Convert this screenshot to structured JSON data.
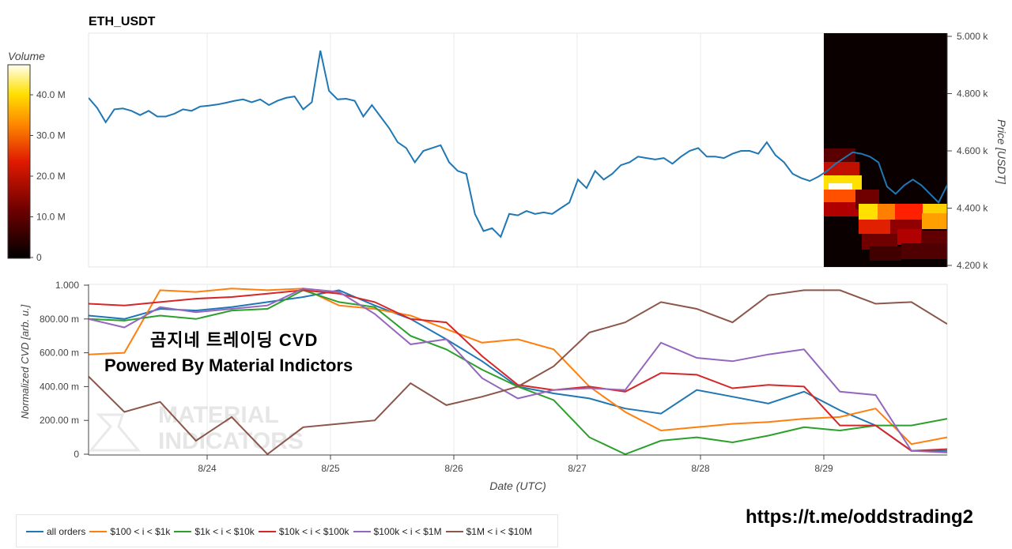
{
  "title": "ETH_USDT",
  "chart_data": [
    {
      "type": "line",
      "title": "ETH_USDT",
      "ylabel": "Price [USDT]",
      "ylim": [
        4200,
        5000
      ],
      "y_ticks": [
        "4.200 k",
        "4.400 k",
        "4.600 k",
        "4.800 k",
        "5.000 k"
      ],
      "x_ticks": [
        "8/24",
        "8/25",
        "8/26",
        "8/27",
        "8/28",
        "8/29"
      ],
      "xlim": [
        0,
        100
      ],
      "x_tick_positions": [
        24.0,
        40.0,
        56.0,
        72.0,
        88.0,
        104.0
      ],
      "series": [
        {
          "color": "#1f77b4",
          "x": [
            0,
            1,
            2,
            3,
            4,
            5,
            6,
            7,
            8,
            9,
            10,
            11,
            12,
            13,
            14,
            15,
            16,
            17,
            18,
            19,
            20,
            21,
            22,
            23,
            24,
            25,
            26,
            27,
            28,
            29,
            30,
            31,
            32,
            33,
            34,
            35,
            36,
            37,
            38,
            39,
            40,
            41,
            42,
            43,
            44,
            45,
            46,
            47,
            48,
            49,
            50,
            51,
            52,
            53,
            54,
            55,
            56,
            57,
            58,
            59,
            60,
            61,
            62,
            63,
            64,
            65,
            66,
            67,
            68,
            69,
            70,
            71,
            72,
            73,
            74,
            75,
            76,
            77,
            78,
            79,
            80,
            81,
            82,
            83,
            84,
            85,
            86,
            87,
            88,
            89,
            90,
            91,
            92,
            93,
            94,
            95,
            96,
            97,
            98,
            99,
            100
          ],
          "y": [
            4785,
            4750,
            4700,
            4745,
            4748,
            4740,
            4725,
            4740,
            4720,
            4720,
            4730,
            4745,
            4740,
            4755,
            4758,
            4762,
            4768,
            4775,
            4780,
            4770,
            4780,
            4760,
            4775,
            4785,
            4790,
            4745,
            4770,
            4950,
            4810,
            4780,
            4782,
            4775,
            4720,
            4760,
            4720,
            4680,
            4630,
            4610,
            4560,
            4600,
            4610,
            4620,
            4560,
            4530,
            4520,
            4380,
            4320,
            4330,
            4300,
            4380,
            4375,
            4390,
            4380,
            4385,
            4380,
            4400,
            4420,
            4500,
            4470,
            4530,
            4500,
            4520,
            4550,
            4560,
            4580,
            4575,
            4570,
            4575,
            4555,
            4580,
            4600,
            4610,
            4580,
            4580,
            4575,
            4590,
            4600,
            4600,
            4590,
            4630,
            4585,
            4560,
            4520,
            4505,
            4495,
            4510,
            4530,
            4555,
            4575,
            4595,
            4590,
            4580,
            4560,
            4475,
            4450,
            4480,
            4500,
            4480,
            4450,
            4420,
            4480
          ]
        }
      ],
      "heatmap": {
        "colorbar_label": "Volume",
        "colorbar_ticks": [
          "0",
          "10.0 M",
          "20.0 M",
          "30.0 M",
          "40.0 M"
        ]
      }
    },
    {
      "type": "line",
      "xlabel": "Date (UTC)",
      "ylabel": "Normalized CVD [arb. u.]",
      "ylim": [
        0,
        1
      ],
      "y_ticks": [
        "0",
        "200.00 m",
        "400.00 m",
        "600.00 m",
        "800.00 m",
        "1.000"
      ],
      "x_ticks": [
        "8/24",
        "8/25",
        "8/26",
        "8/27",
        "8/28",
        "8/29"
      ],
      "legend_position": "bottom-left",
      "series": [
        {
          "name": "all orders",
          "color": "#1f77b4",
          "x": [
            0,
            5,
            10,
            15,
            20,
            25,
            30,
            35,
            40,
            45,
            50,
            55,
            60,
            65,
            70,
            75,
            80,
            85,
            90,
            95,
            100,
            105,
            110,
            115,
            120
          ],
          "y": [
            0.82,
            0.8,
            0.86,
            0.85,
            0.87,
            0.9,
            0.93,
            0.97,
            0.88,
            0.8,
            0.68,
            0.55,
            0.4,
            0.36,
            0.33,
            0.27,
            0.24,
            0.38,
            0.34,
            0.3,
            0.37,
            0.26,
            0.17,
            0.02,
            0.02
          ]
        },
        {
          "name": "$100 < i < $1k",
          "color": "#ff7f0e",
          "x": [
            0,
            5,
            10,
            15,
            20,
            25,
            30,
            35,
            40,
            45,
            50,
            55,
            60,
            65,
            70,
            75,
            80,
            85,
            90,
            95,
            100,
            105,
            110,
            115,
            120
          ],
          "y": [
            0.59,
            0.6,
            0.97,
            0.96,
            0.98,
            0.97,
            0.98,
            0.88,
            0.86,
            0.82,
            0.74,
            0.66,
            0.68,
            0.62,
            0.4,
            0.25,
            0.14,
            0.16,
            0.18,
            0.19,
            0.21,
            0.22,
            0.27,
            0.06,
            0.1
          ]
        },
        {
          "name": "$1k < i < $10k",
          "color": "#2ca02c",
          "x": [
            0,
            5,
            10,
            15,
            20,
            25,
            30,
            35,
            40,
            45,
            50,
            55,
            60,
            65,
            70,
            75,
            80,
            85,
            90,
            95,
            100,
            105,
            110,
            115,
            120
          ],
          "y": [
            0.8,
            0.79,
            0.82,
            0.8,
            0.85,
            0.86,
            0.97,
            0.9,
            0.87,
            0.7,
            0.62,
            0.5,
            0.4,
            0.32,
            0.1,
            0.0,
            0.08,
            0.1,
            0.07,
            0.11,
            0.16,
            0.14,
            0.17,
            0.17,
            0.21
          ]
        },
        {
          "name": "$10k < i < $100k",
          "color": "#d62728",
          "x": [
            0,
            5,
            10,
            15,
            20,
            25,
            30,
            35,
            40,
            45,
            50,
            55,
            60,
            65,
            70,
            75,
            80,
            85,
            90,
            95,
            100,
            105,
            110,
            115,
            120
          ],
          "y": [
            0.89,
            0.88,
            0.9,
            0.92,
            0.93,
            0.95,
            0.97,
            0.95,
            0.9,
            0.8,
            0.78,
            0.58,
            0.41,
            0.38,
            0.4,
            0.37,
            0.48,
            0.47,
            0.39,
            0.41,
            0.4,
            0.17,
            0.17,
            0.02,
            0.03
          ]
        },
        {
          "name": "$100k < i < $1M",
          "color": "#9467bd",
          "x": [
            0,
            5,
            10,
            15,
            20,
            25,
            30,
            35,
            40,
            45,
            50,
            55,
            60,
            65,
            70,
            75,
            80,
            85,
            90,
            95,
            100,
            105,
            110,
            115,
            120
          ],
          "y": [
            0.8,
            0.75,
            0.87,
            0.84,
            0.86,
            0.88,
            0.98,
            0.96,
            0.83,
            0.65,
            0.68,
            0.45,
            0.33,
            0.38,
            0.39,
            0.38,
            0.66,
            0.57,
            0.55,
            0.59,
            0.62,
            0.37,
            0.35,
            0.02,
            0.01
          ]
        },
        {
          "name": "$1M < i < $10M",
          "color": "#8c564b",
          "x": [
            0,
            5,
            10,
            15,
            20,
            25,
            30,
            35,
            40,
            45,
            50,
            55,
            60,
            65,
            70,
            75,
            80,
            85,
            90,
            95,
            100,
            105,
            110,
            115,
            120
          ],
          "y": [
            0.46,
            0.25,
            0.31,
            0.08,
            0.22,
            0.0,
            0.16,
            0.18,
            0.2,
            0.42,
            0.29,
            0.34,
            0.4,
            0.52,
            0.72,
            0.78,
            0.9,
            0.86,
            0.78,
            0.94,
            0.97,
            0.97,
            0.89,
            0.9,
            0.77
          ]
        }
      ]
    }
  ],
  "overlay": {
    "title": "곰지네 트레이딩 CVD",
    "subtitle": "Powered By Material Indictors",
    "watermark_line1": "MATERIAL",
    "watermark_line2": "INDICATORS",
    "url": "https://t.me/oddstrading2"
  }
}
